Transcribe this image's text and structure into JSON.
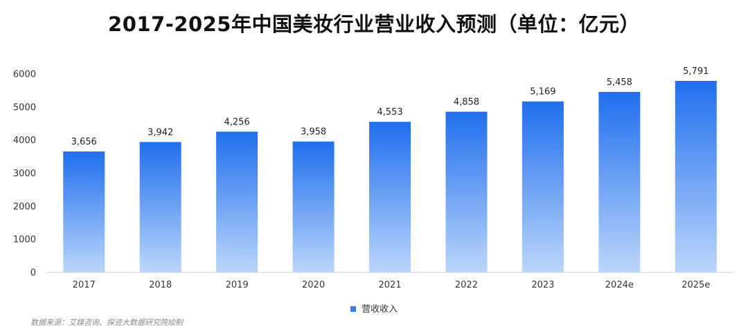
{
  "chart_data": {
    "type": "bar",
    "title": "2017-2025年中国美妆行业营业收入预测（单位：亿元）",
    "categories": [
      "2017",
      "2018",
      "2019",
      "2020",
      "2021",
      "2022",
      "2023",
      "2024e",
      "2025e"
    ],
    "series": [
      {
        "name": "营收收入",
        "values": [
          3656,
          3942,
          4256,
          3958,
          4553,
          4858,
          5169,
          5458,
          5791
        ]
      }
    ],
    "value_labels": [
      "3,656",
      "3,942",
      "4,256",
      "3,958",
      "4,553",
      "4,858",
      "5,169",
      "5,458",
      "5,791"
    ],
    "ylim": [
      0,
      6000
    ],
    "yticks": [
      0,
      1000,
      2000,
      3000,
      4000,
      5000,
      6000
    ],
    "xlabel": "",
    "ylabel": "",
    "grid": false,
    "legend_position": "bottom-center",
    "colors": {
      "bar_top": "#1f6fee",
      "bar_bottom": "#bcd6fb",
      "axis": "#cccccc"
    }
  },
  "source": "数据来源：艾媒咨询、探迹大数据研究院绘制"
}
